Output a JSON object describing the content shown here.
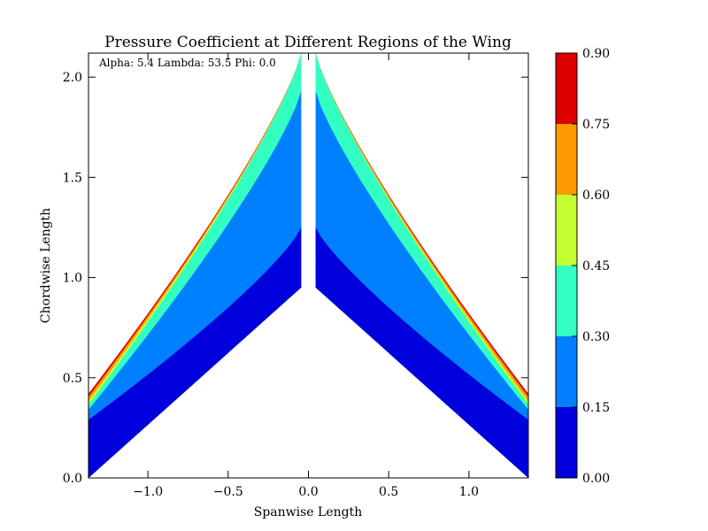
{
  "chart_data": {
    "type": "contour",
    "title": "Pressure Coefficient at Different Regions of the Wing",
    "xlabel": "Spanwise Length",
    "ylabel": "Chordwise Length",
    "annotation": "Alpha:  5.4 Lambda: 53.5 Phi:  0.0",
    "parameters": {
      "alpha": 5.4,
      "lambda": 53.5,
      "phi": 0.0
    },
    "xlim": [
      -1.37,
      1.37
    ],
    "ylim": [
      0.0,
      2.12
    ],
    "xticks": [
      -1.0,
      -0.5,
      0.0,
      0.5,
      1.0
    ],
    "xtick_labels": [
      "−1.0",
      "−0.5",
      "0.0",
      "0.5",
      "1.0"
    ],
    "yticks": [
      0.0,
      0.5,
      1.0,
      1.5,
      2.0
    ],
    "ytick_labels": [
      "0.0",
      "0.5",
      "1.0",
      "1.5",
      "2.0"
    ],
    "wing": {
      "root_gap_half_width": 0.045,
      "root_leading_edge": 0.95,
      "tip_leading_edge": 0.0,
      "root_trailing_edge": 2.12,
      "tip_trailing_edge": 0.42,
      "tip_span": 1.37
    },
    "levels": [
      0.0,
      0.15,
      0.3,
      0.45,
      0.6,
      0.75,
      0.9
    ],
    "level_colors": [
      "#0000dd",
      "#0080ff",
      "#33ffc3",
      "#c3ff33",
      "#ff9900",
      "#dd0000"
    ],
    "regions": [
      {
        "range": [
          0.0,
          0.15
        ],
        "color": "#0000dd",
        "upper_edge_at_root": 1.25,
        "upper_edge_at_tip": 0.29
      },
      {
        "range": [
          0.15,
          0.3
        ],
        "color": "#0080ff",
        "upper_edge_at_root": 1.93,
        "upper_edge_at_tip": 0.34
      },
      {
        "range": [
          0.3,
          0.45
        ],
        "color": "#33ffc3",
        "upper_edge_at_root": 2.12,
        "upper_edge_at_tip": 0.365
      },
      {
        "range": [
          0.45,
          0.6
        ],
        "color": "#c3ff33",
        "upper_edge_at_root": 2.12,
        "upper_edge_at_tip": 0.385
      },
      {
        "range": [
          0.6,
          0.75
        ],
        "color": "#ff9900",
        "upper_edge_at_root": 2.12,
        "upper_edge_at_tip": 0.405
      },
      {
        "range": [
          0.75,
          0.9
        ],
        "color": "#dd0000",
        "upper_edge_at_root": 2.12,
        "upper_edge_at_tip": 0.42
      }
    ],
    "colorbar": {
      "ticks": [
        0.0,
        0.15,
        0.3,
        0.45,
        0.6,
        0.75,
        0.9
      ],
      "tick_labels": [
        "0.00",
        "0.15",
        "0.30",
        "0.45",
        "0.60",
        "0.75",
        "0.90"
      ],
      "range": [
        0.0,
        0.9
      ]
    },
    "grid": false
  }
}
